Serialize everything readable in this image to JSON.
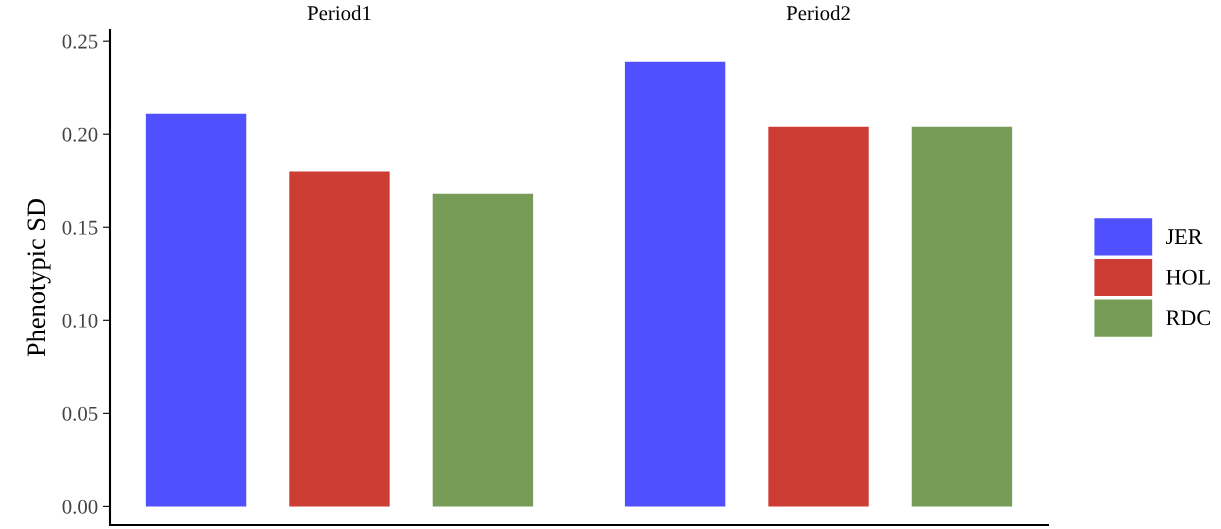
{
  "chart_data": {
    "type": "bar",
    "ylabel": "Phenotypic SD",
    "categories": [
      "Period1",
      "Period2"
    ],
    "series": [
      {
        "name": "JER",
        "color": "#5050ff",
        "values": [
          0.211,
          0.239
        ]
      },
      {
        "name": "HOL",
        "color": "#cd3d33",
        "values": [
          0.18,
          0.204
        ]
      },
      {
        "name": "RDC",
        "color": "#769c58",
        "values": [
          0.168,
          0.204
        ]
      }
    ],
    "ylim": [
      -0.01,
      0.256
    ],
    "yticks": [
      {
        "value": 0,
        "label": "0.00"
      },
      {
        "value": 0.05,
        "label": "0.05"
      },
      {
        "value": 0.1,
        "label": "0.10"
      },
      {
        "value": 0.15,
        "label": "0.15"
      },
      {
        "value": 0.2,
        "label": "0.20"
      },
      {
        "value": 0.25,
        "label": "0.25"
      }
    ],
    "grid": false,
    "legend": "right"
  }
}
